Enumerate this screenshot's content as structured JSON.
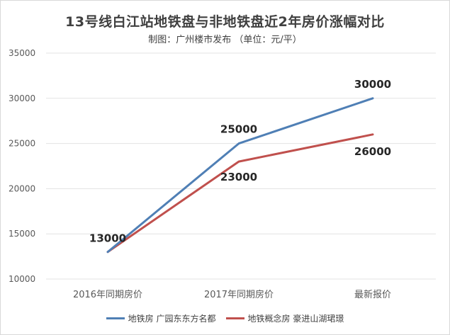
{
  "colors": {
    "series1": "#4f7fb5",
    "series2": "#c0504d",
    "axis_text": "#595959",
    "label_text": "#262626",
    "grid": "#e3e3e3"
  },
  "chart_data": {
    "type": "line",
    "title": "13号线白江站地铁盘与非地铁盘近2年房价涨幅对比",
    "subtitle": "制图：广州楼市发布 （单位：元/平）",
    "categories": [
      "2016年同期房价",
      "2017年同期房价",
      "最新报价"
    ],
    "ylim": [
      10000,
      35000
    ],
    "yticks": [
      "10000",
      "15000",
      "20000",
      "25000",
      "30000",
      "35000"
    ],
    "grid": true,
    "legend_position": "bottom",
    "series": [
      {
        "name": "地铁房 广园东东方名都",
        "values": [
          13000,
          25000,
          30000
        ],
        "labels": [
          "13000",
          "25000",
          "30000"
        ]
      },
      {
        "name": "地铁概念房 豪进山湖珺璟",
        "values": [
          13000,
          23000,
          26000
        ],
        "labels": [
          "",
          "23000",
          "26000"
        ]
      }
    ]
  }
}
